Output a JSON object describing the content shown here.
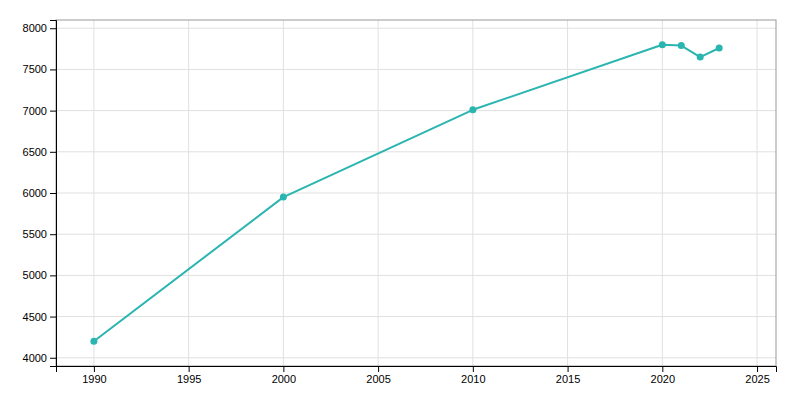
{
  "chart_data": {
    "type": "line",
    "x": [
      1990,
      2000,
      2010,
      2020,
      2021,
      2022,
      2023
    ],
    "values": [
      4200,
      5950,
      7010,
      7800,
      7790,
      7650,
      7760
    ],
    "color": "#2ab5b0",
    "marker": "circle",
    "xlim": [
      1988,
      2026
    ],
    "ylim": [
      3900,
      8100
    ],
    "xticks": [
      1990,
      1995,
      2000,
      2005,
      2010,
      2015,
      2020,
      2025
    ],
    "yticks": [
      4000,
      4500,
      5000,
      5500,
      6000,
      6500,
      7000,
      7500,
      8000
    ],
    "grid": true
  }
}
